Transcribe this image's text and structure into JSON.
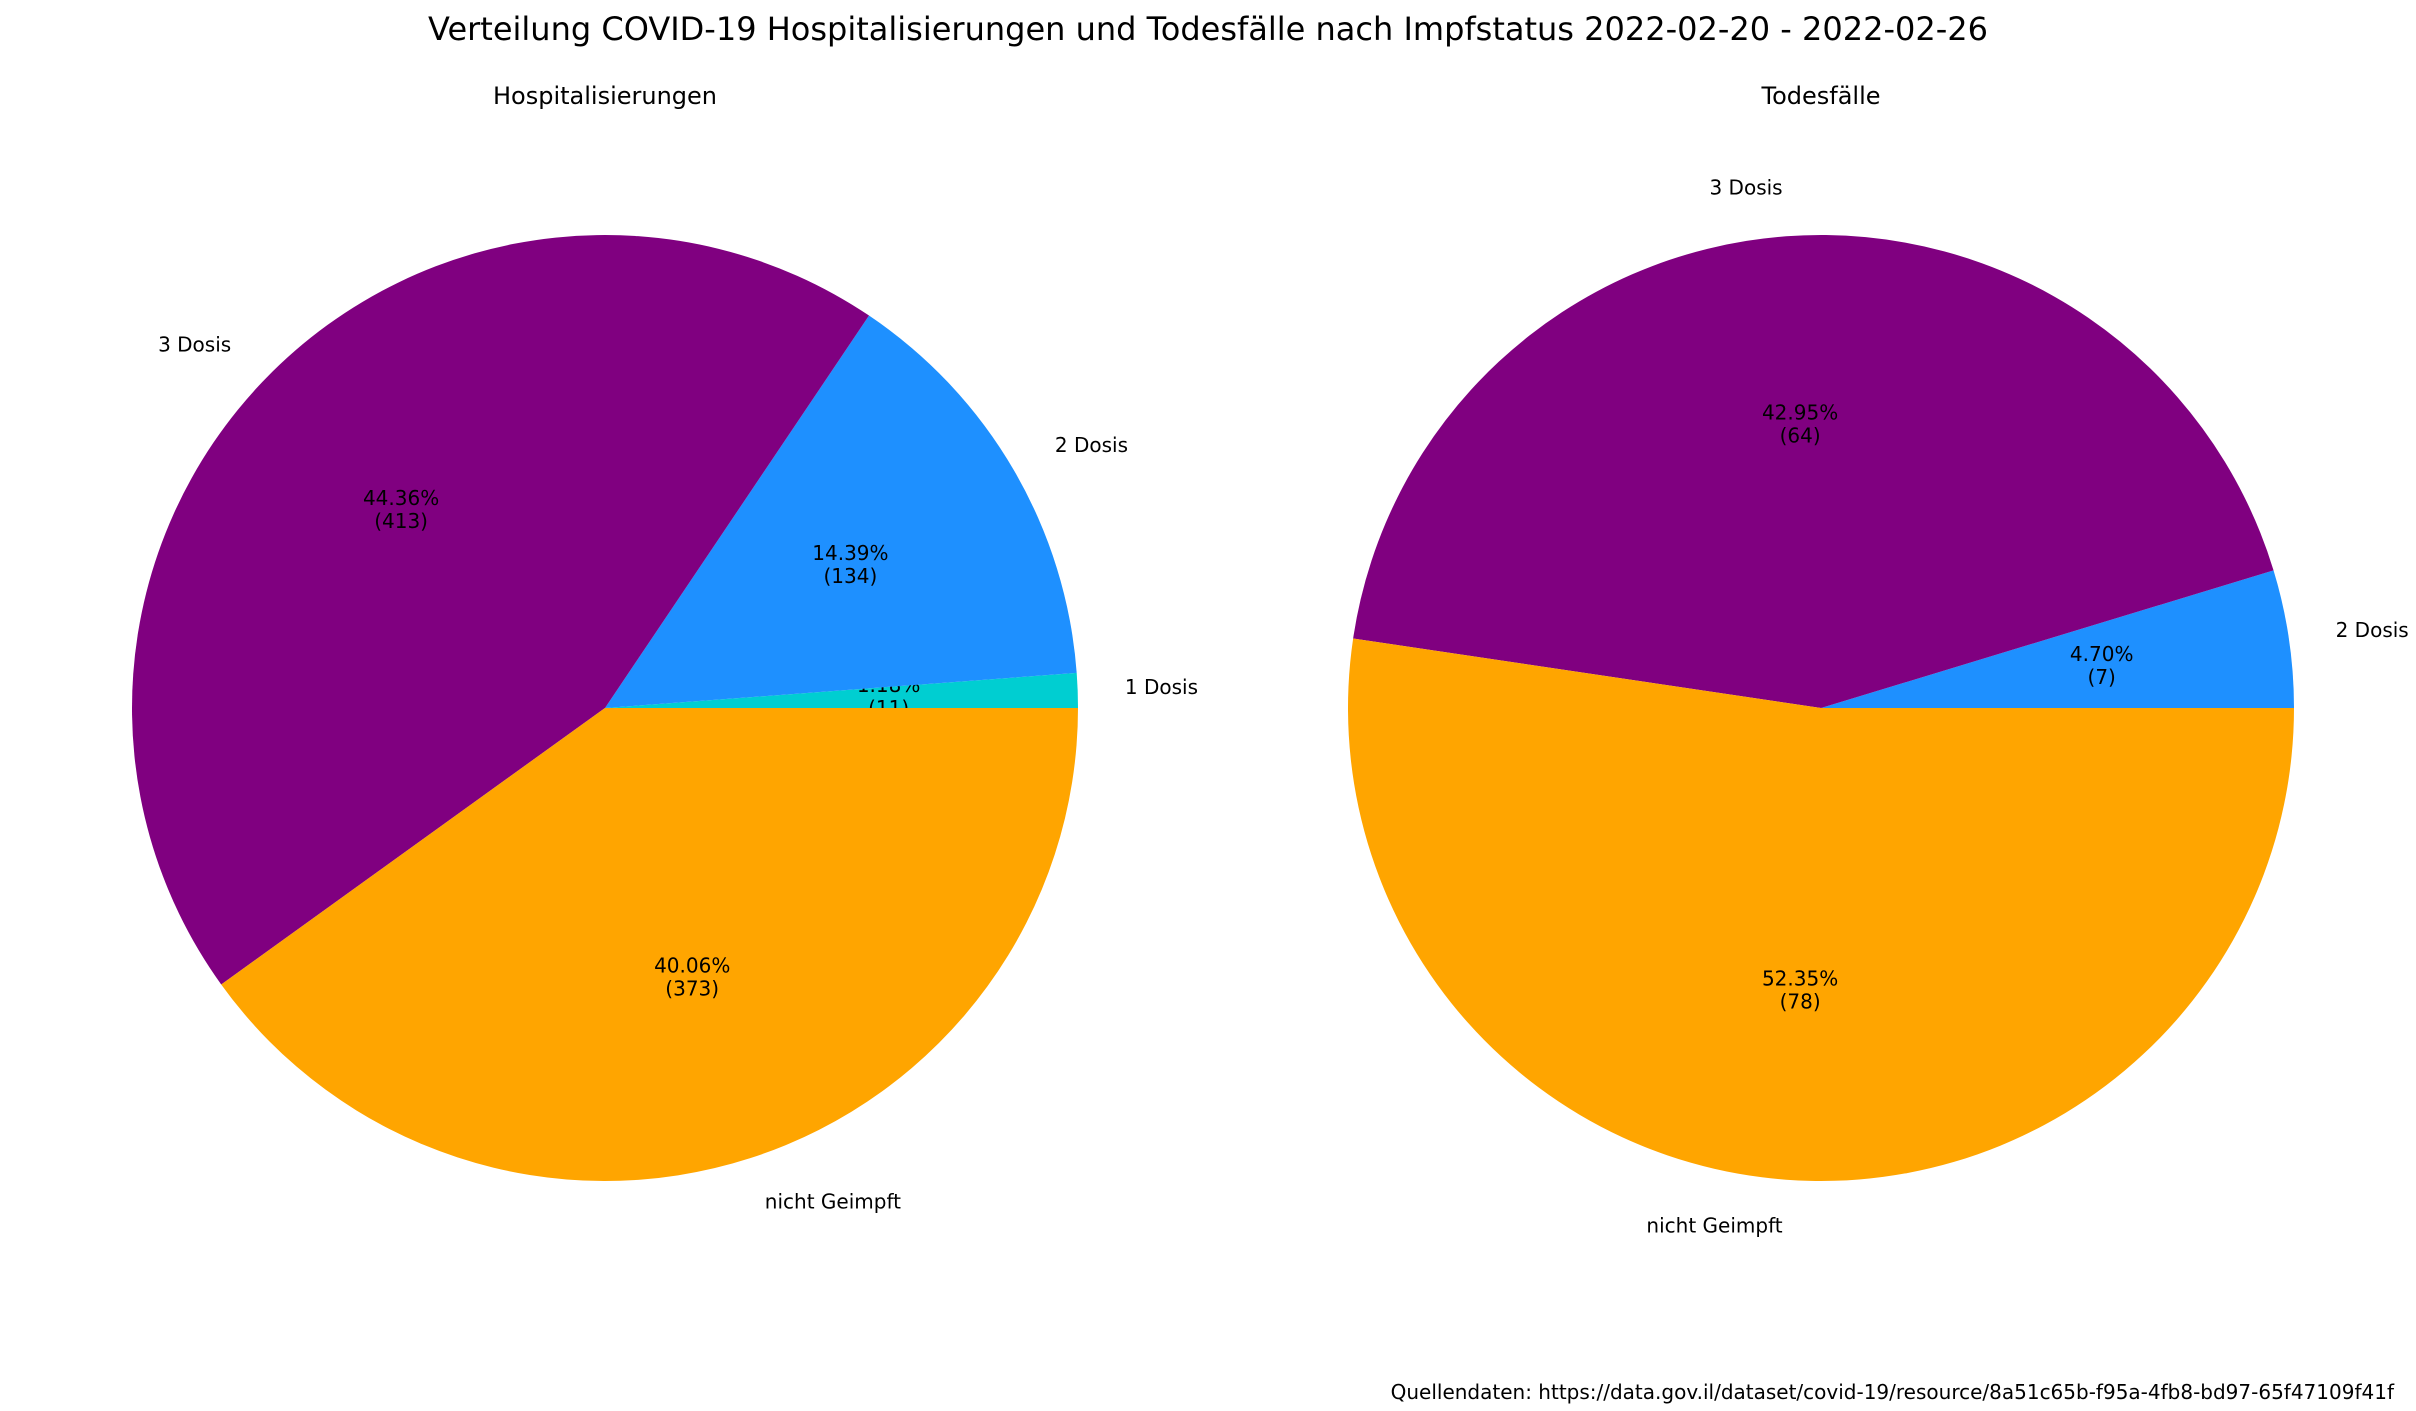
{
  "title": "Verteilung COVID-19 Hospitalisierungen und Todesfälle nach Impfstatus 2022-02-20 - 2022-02-26",
  "source_note": "Quellendaten: https://data.gov.il/dataset/covid-19/resource/8a51c65b-f95a-4fb8-bd97-65f47109f41f",
  "chart_data": [
    {
      "type": "pie",
      "title": "Hospitalisierungen",
      "slices": [
        {
          "label": "1 Dosis",
          "value": 11,
          "percent": "1.18%",
          "count": "(11)",
          "color": "#00CED1"
        },
        {
          "label": "2 Dosis",
          "value": 134,
          "percent": "14.39%",
          "count": "(134)",
          "color": "#1E90FF"
        },
        {
          "label": "3 Dosis",
          "value": 413,
          "percent": "44.36%",
          "count": "(413)",
          "color": "#800080"
        },
        {
          "label": "nicht Geimpft",
          "value": 373,
          "percent": "40.06%",
          "count": "(373)",
          "color": "#FFA500"
        }
      ]
    },
    {
      "type": "pie",
      "title": "Todesfälle",
      "slices": [
        {
          "label": "",
          "value": 0,
          "percent": "0.00%",
          "count": "(0)",
          "color": "#00CED1"
        },
        {
          "label": "2 Dosis",
          "value": 7,
          "percent": "4.70%",
          "count": "(7)",
          "color": "#1E90FF"
        },
        {
          "label": "3 Dosis",
          "value": 64,
          "percent": "42.95%",
          "count": "(64)",
          "color": "#800080"
        },
        {
          "label": "nicht Geimpft",
          "value": 78,
          "percent": "52.35%",
          "count": "(78)",
          "color": "#FFA500"
        }
      ]
    }
  ]
}
